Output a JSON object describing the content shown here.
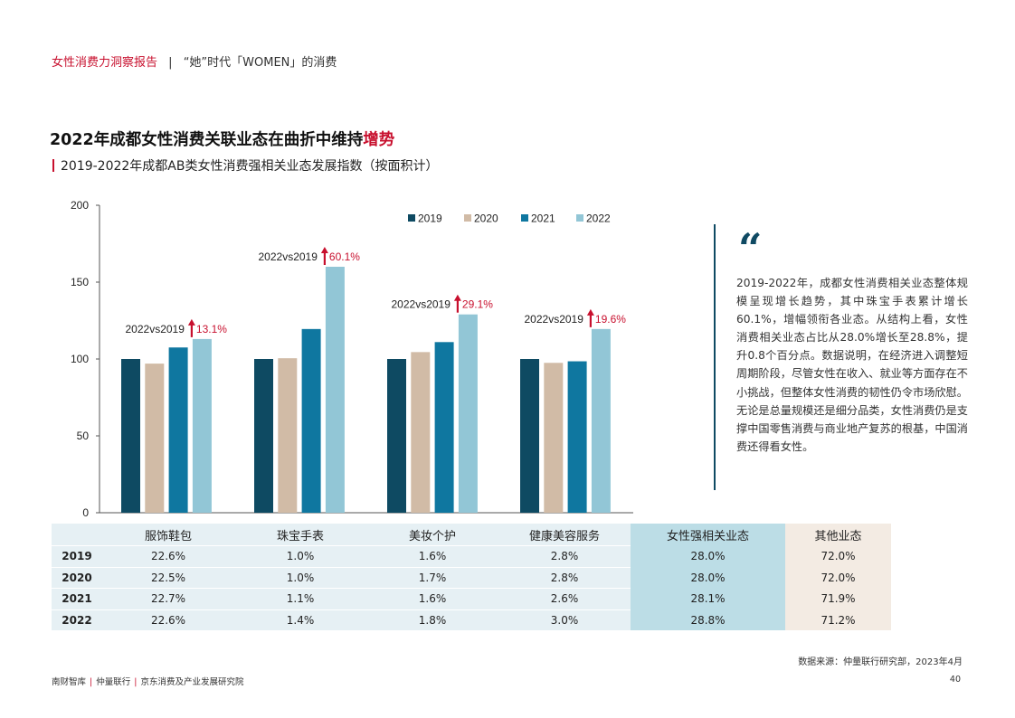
{
  "header": {
    "report": "女性消费力洞察报告",
    "divider": "|",
    "section": "“她”时代「WOMEN」的消费"
  },
  "title": {
    "main": "2022年成都女性消费关联业态在曲折中维持",
    "highlight": "增势"
  },
  "subtitle": "2019-2022年成都AB类女性消费强相关业态发展指数（按面积计）",
  "chart_data": {
    "type": "bar",
    "categories": [
      "服饰鞋包",
      "珠宝手表",
      "美妆个护",
      "健康美容服务"
    ],
    "series": [
      {
        "name": "2019",
        "values": [
          100,
          100,
          100,
          100
        ]
      },
      {
        "name": "2020",
        "values": [
          97,
          100.5,
          104.5,
          97.5
        ]
      },
      {
        "name": "2021",
        "values": [
          107.5,
          119.5,
          111,
          98.5
        ]
      },
      {
        "name": "2022",
        "values": [
          113,
          160,
          129,
          119.5
        ]
      }
    ],
    "ylim": [
      0,
      200
    ],
    "yticks": [
      "0",
      "50",
      "100",
      "150",
      "200"
    ],
    "legend_position": "top",
    "colors": [
      "#0e4a62",
      "#d1bba6",
      "#0f77a0",
      "#92c6d6"
    ],
    "annotations": [
      {
        "label": "2022vs2019",
        "value": "13.1%"
      },
      {
        "label": "2022vs2019",
        "value": "60.1%"
      },
      {
        "label": "2022vs2019",
        "value": "29.1%"
      },
      {
        "label": "2022vs2019",
        "value": "19.6%"
      }
    ],
    "up_arrow_color": "#c8102e"
  },
  "table": {
    "headers": [
      "服饰鞋包",
      "珠宝手表",
      "美妆个护",
      "健康美容服务",
      "女性强相关业态",
      "其他业态"
    ],
    "rows": [
      {
        "year": "2019",
        "cells": [
          "22.6%",
          "1.0%",
          "1.6%",
          "2.8%",
          "28.0%",
          "72.0%"
        ]
      },
      {
        "year": "2020",
        "cells": [
          "22.5%",
          "1.0%",
          "1.7%",
          "2.8%",
          "28.0%",
          "72.0%"
        ]
      },
      {
        "year": "2021",
        "cells": [
          "22.7%",
          "1.1%",
          "1.6%",
          "2.6%",
          "28.1%",
          "71.9%"
        ]
      },
      {
        "year": "2022",
        "cells": [
          "22.6%",
          "1.4%",
          "1.8%",
          "3.0%",
          "28.8%",
          "71.2%"
        ]
      }
    ]
  },
  "quote": {
    "mark": "“",
    "text": "2019-2022年，成都女性消费相关业态整体规模呈现增长趋势，其中珠宝手表累计增长60.1%，增幅领衔各业态。从结构上看，女性消费相关业态占比从28.0%增长至28.8%，提升0.8个百分点。数据说明，在经济进入调整短周期阶段，尽管女性在收入、就业等方面存在不小挑战，但整体女性消费的韧性仍令市场欣慰。无论是总量规模还是细分品类，女性消费仍是支撑中国零售消费与商业地产复苏的根基，中国消费还得看女性。"
  },
  "source": "数据来源：仲量联行研究部，2023年4月",
  "footer": {
    "org1": "南财智库",
    "sep": "|",
    "org2": "仲量联行",
    "org3": "京东消费及产业发展研究院"
  },
  "page_number": "40"
}
